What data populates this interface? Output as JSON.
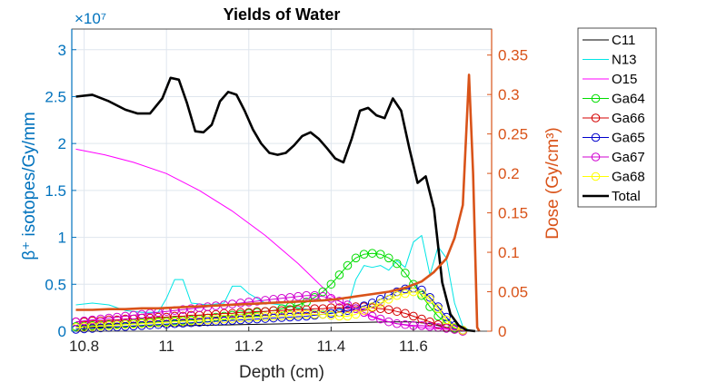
{
  "chart_data": {
    "type": "line",
    "title": "Yields of Water",
    "xlabel": "Depth (cm)",
    "ylabel_left": "β⁺ isotopes/Gy/mm",
    "ylabel_right": "Dose (Gy/cm³)",
    "y_exponent_label": "×10⁷",
    "xlim": [
      10.77,
      11.79
    ],
    "ylim_left": [
      0,
      3.22
    ],
    "ylim_right": [
      0,
      0.383
    ],
    "x_ticks": [
      10.8,
      11,
      11.2,
      11.4,
      11.6
    ],
    "x_tick_labels": [
      "10.8",
      "11",
      "11.2",
      "11.4",
      "11.6"
    ],
    "y_ticks_left": [
      0,
      0.5,
      1,
      1.5,
      2,
      2.5,
      3
    ],
    "y_tick_labels_left": [
      "0",
      "0.5",
      "1",
      "1.5",
      "2",
      "2.5",
      "3"
    ],
    "y_ticks_right": [
      0,
      0.05,
      0.1,
      0.15,
      0.2,
      0.25,
      0.3,
      0.35
    ],
    "y_tick_labels_right": [
      "0",
      "0.05",
      "0.1",
      "0.15",
      "0.2",
      "0.25",
      "0.3",
      "0.35"
    ],
    "grid": true,
    "legend_position": "outside-right",
    "colors": {
      "left_axis": "#0072BD",
      "right_axis": "#D95319",
      "grid": "#dfe6ee"
    },
    "series": [
      {
        "name": "C11",
        "axis": "left",
        "color": "#000000",
        "width": 1,
        "marker": "none",
        "x": [
          10.78,
          10.86,
          10.94,
          11.0,
          11.06,
          11.12,
          11.18,
          11.24,
          11.3,
          11.36,
          11.42,
          11.48,
          11.54,
          11.6,
          11.64,
          11.68,
          11.72,
          11.75
        ],
        "y": [
          0.04,
          0.045,
          0.05,
          0.055,
          0.06,
          0.065,
          0.07,
          0.075,
          0.08,
          0.085,
          0.09,
          0.095,
          0.1,
          0.1,
          0.08,
          0.04,
          0.01,
          0.0
        ]
      },
      {
        "name": "N13",
        "axis": "left",
        "color": "#00e5e5",
        "width": 1,
        "marker": "none",
        "x": [
          10.78,
          10.82,
          10.86,
          10.9,
          10.94,
          10.98,
          11.0,
          11.02,
          11.04,
          11.06,
          11.1,
          11.14,
          11.16,
          11.18,
          11.2,
          11.24,
          11.28,
          11.32,
          11.36,
          11.4,
          11.44,
          11.46,
          11.48,
          11.5,
          11.52,
          11.54,
          11.56,
          11.58,
          11.6,
          11.62,
          11.64,
          11.66,
          11.68,
          11.7,
          11.72,
          11.74
        ],
        "y": [
          0.28,
          0.3,
          0.28,
          0.22,
          0.2,
          0.2,
          0.35,
          0.55,
          0.55,
          0.3,
          0.28,
          0.3,
          0.48,
          0.48,
          0.4,
          0.3,
          0.28,
          0.25,
          0.22,
          0.2,
          0.25,
          0.55,
          0.7,
          0.68,
          0.7,
          0.65,
          0.75,
          0.68,
          0.95,
          1.02,
          0.6,
          0.9,
          0.78,
          0.3,
          0.05,
          0.0
        ]
      },
      {
        "name": "O15",
        "axis": "left",
        "color": "#ff00ff",
        "width": 1,
        "marker": "none",
        "x": [
          10.78,
          10.85,
          10.92,
          11.0,
          11.08,
          11.16,
          11.24,
          11.32,
          11.36,
          11.4,
          11.44,
          11.48,
          11.52,
          11.56,
          11.6,
          11.64,
          11.68,
          11.72,
          11.74
        ],
        "y": [
          1.94,
          1.88,
          1.8,
          1.68,
          1.5,
          1.28,
          1.02,
          0.72,
          0.55,
          0.38,
          0.26,
          0.18,
          0.12,
          0.08,
          0.05,
          0.03,
          0.02,
          0.01,
          0.0
        ]
      },
      {
        "name": "Ga64",
        "axis": "left",
        "color": "#00dd00",
        "width": 1,
        "marker": "circle",
        "x": [
          10.78,
          10.8,
          10.82,
          10.84,
          10.86,
          10.88,
          10.9,
          10.92,
          10.94,
          10.96,
          10.98,
          11.0,
          11.02,
          11.04,
          11.06,
          11.08,
          11.1,
          11.12,
          11.14,
          11.16,
          11.18,
          11.2,
          11.22,
          11.24,
          11.26,
          11.28,
          11.3,
          11.32,
          11.34,
          11.36,
          11.38,
          11.4,
          11.42,
          11.44,
          11.46,
          11.48,
          11.5,
          11.52,
          11.54,
          11.56,
          11.58,
          11.6,
          11.62,
          11.64,
          11.66,
          11.68,
          11.7,
          11.72
        ],
        "y": [
          0.05,
          0.055,
          0.06,
          0.065,
          0.07,
          0.075,
          0.08,
          0.085,
          0.09,
          0.095,
          0.1,
          0.105,
          0.11,
          0.115,
          0.12,
          0.13,
          0.14,
          0.15,
          0.16,
          0.17,
          0.18,
          0.19,
          0.2,
          0.21,
          0.22,
          0.24,
          0.26,
          0.28,
          0.31,
          0.36,
          0.42,
          0.5,
          0.6,
          0.7,
          0.78,
          0.82,
          0.83,
          0.82,
          0.78,
          0.72,
          0.62,
          0.5,
          0.38,
          0.26,
          0.16,
          0.08,
          0.03,
          0.01
        ]
      },
      {
        "name": "Ga66",
        "axis": "left",
        "color": "#d40000",
        "width": 1,
        "marker": "circle",
        "x": [
          10.78,
          10.8,
          10.82,
          10.84,
          10.86,
          10.88,
          10.9,
          10.92,
          10.94,
          10.96,
          10.98,
          11.0,
          11.02,
          11.04,
          11.06,
          11.08,
          11.1,
          11.12,
          11.14,
          11.16,
          11.18,
          11.2,
          11.22,
          11.24,
          11.26,
          11.28,
          11.3,
          11.32,
          11.34,
          11.36,
          11.38,
          11.4,
          11.42,
          11.44,
          11.46,
          11.48,
          11.5,
          11.52,
          11.54,
          11.56,
          11.58,
          11.6,
          11.62,
          11.64,
          11.66,
          11.68,
          11.7,
          11.72
        ],
        "y": [
          0.1,
          0.1,
          0.11,
          0.11,
          0.12,
          0.12,
          0.13,
          0.13,
          0.14,
          0.14,
          0.15,
          0.15,
          0.16,
          0.16,
          0.17,
          0.17,
          0.18,
          0.18,
          0.19,
          0.19,
          0.2,
          0.2,
          0.21,
          0.21,
          0.22,
          0.22,
          0.23,
          0.23,
          0.23,
          0.24,
          0.24,
          0.25,
          0.25,
          0.25,
          0.26,
          0.26,
          0.25,
          0.24,
          0.23,
          0.21,
          0.19,
          0.16,
          0.13,
          0.1,
          0.07,
          0.04,
          0.02,
          0.0
        ]
      },
      {
        "name": "Ga65",
        "axis": "left",
        "color": "#0000cc",
        "width": 1,
        "marker": "circle",
        "x": [
          10.78,
          10.8,
          10.82,
          10.84,
          10.86,
          10.88,
          10.9,
          10.92,
          10.94,
          10.96,
          10.98,
          11.0,
          11.02,
          11.04,
          11.06,
          11.08,
          11.1,
          11.12,
          11.14,
          11.16,
          11.18,
          11.2,
          11.22,
          11.24,
          11.26,
          11.28,
          11.3,
          11.32,
          11.34,
          11.36,
          11.38,
          11.4,
          11.42,
          11.44,
          11.46,
          11.48,
          11.5,
          11.52,
          11.54,
          11.56,
          11.58,
          11.6,
          11.62,
          11.64,
          11.66,
          11.68,
          11.7,
          11.72
        ],
        "y": [
          0.02,
          0.025,
          0.03,
          0.035,
          0.04,
          0.045,
          0.05,
          0.055,
          0.06,
          0.065,
          0.07,
          0.075,
          0.08,
          0.085,
          0.09,
          0.095,
          0.1,
          0.105,
          0.11,
          0.115,
          0.12,
          0.125,
          0.13,
          0.135,
          0.14,
          0.145,
          0.15,
          0.155,
          0.16,
          0.17,
          0.18,
          0.19,
          0.2,
          0.22,
          0.24,
          0.27,
          0.3,
          0.34,
          0.38,
          0.42,
          0.45,
          0.46,
          0.44,
          0.36,
          0.26,
          0.15,
          0.06,
          0.01
        ]
      },
      {
        "name": "Ga67",
        "axis": "left",
        "color": "#d000d0",
        "width": 1,
        "marker": "circle",
        "x": [
          10.78,
          10.8,
          10.82,
          10.84,
          10.86,
          10.88,
          10.9,
          10.92,
          10.94,
          10.96,
          10.98,
          11.0,
          11.02,
          11.04,
          11.06,
          11.08,
          11.1,
          11.12,
          11.14,
          11.16,
          11.18,
          11.2,
          11.22,
          11.24,
          11.26,
          11.28,
          11.3,
          11.32,
          11.34,
          11.36,
          11.38,
          11.4,
          11.42,
          11.44,
          11.46,
          11.48,
          11.5,
          11.52,
          11.54,
          11.56,
          11.58,
          11.6,
          11.62,
          11.64,
          11.66,
          11.68,
          11.7,
          11.72
        ],
        "y": [
          0.1,
          0.11,
          0.12,
          0.13,
          0.14,
          0.15,
          0.16,
          0.17,
          0.18,
          0.19,
          0.2,
          0.21,
          0.22,
          0.23,
          0.24,
          0.25,
          0.26,
          0.27,
          0.28,
          0.29,
          0.3,
          0.31,
          0.32,
          0.33,
          0.34,
          0.35,
          0.36,
          0.37,
          0.38,
          0.38,
          0.37,
          0.35,
          0.32,
          0.28,
          0.24,
          0.2,
          0.16,
          0.13,
          0.1,
          0.08,
          0.07,
          0.06,
          0.06,
          0.05,
          0.04,
          0.03,
          0.02,
          0.0
        ]
      },
      {
        "name": "Ga68",
        "axis": "left",
        "color": "#ffff00",
        "width": 1,
        "marker": "circle",
        "x": [
          10.78,
          10.8,
          10.82,
          10.84,
          10.86,
          10.88,
          10.9,
          10.92,
          10.94,
          10.96,
          10.98,
          11.0,
          11.02,
          11.04,
          11.06,
          11.08,
          11.1,
          11.12,
          11.14,
          11.16,
          11.18,
          11.2,
          11.22,
          11.24,
          11.26,
          11.28,
          11.3,
          11.32,
          11.34,
          11.36,
          11.38,
          11.4,
          11.42,
          11.44,
          11.46,
          11.48,
          11.5,
          11.52,
          11.54,
          11.56,
          11.58,
          11.6,
          11.62,
          11.64,
          11.66,
          11.68,
          11.7,
          11.72
        ],
        "y": [
          0.04,
          0.045,
          0.05,
          0.055,
          0.06,
          0.065,
          0.07,
          0.075,
          0.08,
          0.085,
          0.09,
          0.095,
          0.1,
          0.105,
          0.11,
          0.115,
          0.12,
          0.125,
          0.13,
          0.135,
          0.14,
          0.145,
          0.15,
          0.155,
          0.16,
          0.165,
          0.17,
          0.175,
          0.18,
          0.18,
          0.18,
          0.17,
          0.16,
          0.16,
          0.18,
          0.22,
          0.26,
          0.3,
          0.34,
          0.38,
          0.4,
          0.42,
          0.4,
          0.34,
          0.24,
          0.12,
          0.04,
          0.01
        ]
      },
      {
        "name": "Total",
        "axis": "left",
        "color": "#000000",
        "width": 2.6,
        "marker": "none",
        "x": [
          10.78,
          10.82,
          10.86,
          10.9,
          10.93,
          10.96,
          10.99,
          11.01,
          11.03,
          11.05,
          11.07,
          11.09,
          11.11,
          11.13,
          11.15,
          11.17,
          11.19,
          11.21,
          11.23,
          11.25,
          11.27,
          11.29,
          11.31,
          11.33,
          11.35,
          11.37,
          11.39,
          11.41,
          11.43,
          11.45,
          11.47,
          11.49,
          11.51,
          11.53,
          11.55,
          11.57,
          11.59,
          11.61,
          11.63,
          11.65,
          11.67,
          11.69,
          11.71,
          11.73,
          11.75
        ],
        "y": [
          2.5,
          2.52,
          2.45,
          2.36,
          2.32,
          2.32,
          2.48,
          2.7,
          2.68,
          2.43,
          2.13,
          2.12,
          2.2,
          2.45,
          2.55,
          2.52,
          2.35,
          2.15,
          2.0,
          1.9,
          1.88,
          1.9,
          1.98,
          2.08,
          2.12,
          2.05,
          1.95,
          1.84,
          1.8,
          2.05,
          2.35,
          2.38,
          2.3,
          2.27,
          2.48,
          2.35,
          1.95,
          1.58,
          1.65,
          1.3,
          0.52,
          0.18,
          0.06,
          0.01,
          0.0
        ]
      },
      {
        "name": "Dose",
        "axis": "right",
        "color": "#D95319",
        "width": 2.6,
        "marker": "none",
        "x": [
          10.78,
          10.82,
          10.86,
          10.9,
          10.94,
          10.98,
          11.02,
          11.06,
          11.1,
          11.14,
          11.18,
          11.22,
          11.26,
          11.3,
          11.34,
          11.38,
          11.42,
          11.46,
          11.5,
          11.54,
          11.58,
          11.62,
          11.65,
          11.68,
          11.7,
          11.72,
          11.735,
          11.745,
          11.755,
          11.76
        ],
        "y": [
          0.027,
          0.027,
          0.028,
          0.028,
          0.029,
          0.029,
          0.03,
          0.031,
          0.032,
          0.033,
          0.034,
          0.035,
          0.036,
          0.037,
          0.038,
          0.039,
          0.041,
          0.044,
          0.047,
          0.05,
          0.055,
          0.063,
          0.075,
          0.092,
          0.118,
          0.16,
          0.325,
          0.2,
          0.005,
          0.0
        ]
      }
    ]
  }
}
